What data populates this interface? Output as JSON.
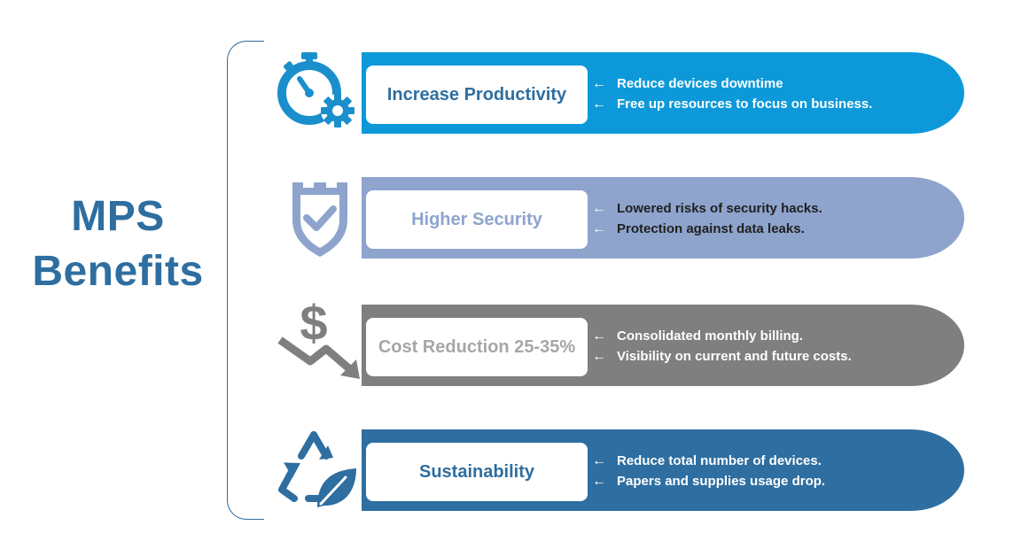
{
  "title": {
    "line1": "MPS",
    "line2": "Benefits"
  },
  "benefits": [
    {
      "label": "Increase Productivity",
      "icon": "stopwatch-gear-icon",
      "color": "#0d99d9",
      "label_color": "#2e6ea0",
      "points": [
        "Reduce devices downtime",
        "Free up resources to focus on business."
      ]
    },
    {
      "label": "Higher Security",
      "icon": "shield-check-icon",
      "color": "#8ea4cd",
      "label_color": "#8ea4cd",
      "points": [
        "Lowered risks of security hacks.",
        "Protection against data leaks."
      ]
    },
    {
      "label": "Cost Reduction 25-35%",
      "icon": "dollar-down-arrow-icon",
      "color": "#7f7f7f",
      "label_color": "#a6a6a6",
      "points": [
        "Consolidated monthly billing.",
        "Visibility on current and future costs."
      ]
    },
    {
      "label": "Sustainability",
      "icon": "recycle-leaf-icon",
      "color": "#2e6ea0",
      "label_color": "#2e6ea0",
      "points": [
        "Reduce total number of devices.",
        "Papers and supplies usage drop."
      ]
    }
  ],
  "arrow_glyph": "←"
}
